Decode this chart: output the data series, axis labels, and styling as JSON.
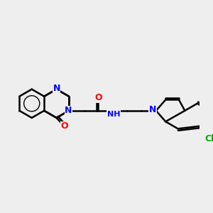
{
  "background_color": "#eeeeee",
  "bond_color": "#000000",
  "bond_width": 1.8,
  "atom_colors": {
    "N": "#0000ff",
    "O": "#ff0000",
    "Cl": "#00aa00",
    "C": "#000000",
    "H": "#000000"
  },
  "font_size_atom": 9,
  "font_size_small": 7.5
}
